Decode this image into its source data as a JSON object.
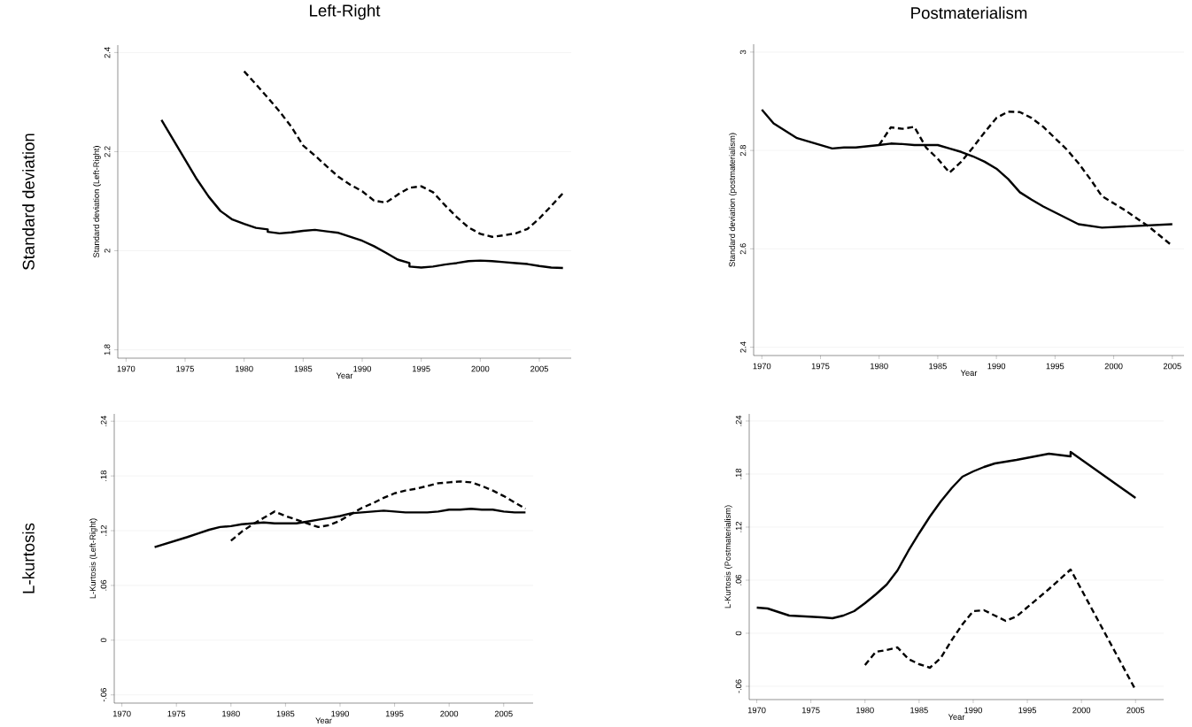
{
  "chart_data": [
    {
      "type": "line",
      "title": "Left-Right",
      "xlabel": "Year",
      "ylabel": "Standard deviation (Left-Right)",
      "annotations": [
        "Standard deviation"
      ],
      "xlim": [
        1969.3,
        2007.7
      ],
      "ylim": [
        1.783,
        2.415
      ],
      "xticks": [
        1970,
        1975,
        1980,
        1985,
        1990,
        1995,
        2000,
        2005
      ],
      "yticks": [
        1.8,
        2,
        2.2,
        2.4
      ],
      "grid": "y",
      "series": [
        {
          "color": "#000000",
          "line_style": "solid",
          "x": [
            1973,
            1976,
            1977,
            1978,
            1979,
            1980,
            1981,
            1982,
            1982,
            1983,
            1984,
            1985,
            1986,
            1987,
            1988,
            1989,
            1990,
            1991,
            1992,
            1993,
            1994,
            1994,
            1995,
            1996,
            1997,
            1998,
            1999,
            2000,
            2001,
            2002,
            2003,
            2004,
            2005,
            2006,
            2007
          ],
          "values": [
            2.264,
            2.144,
            2.109,
            2.08,
            2.063,
            2.054,
            2.046,
            2.043,
            2.038,
            2.035,
            2.037,
            2.04,
            2.042,
            2.039,
            2.036,
            2.028,
            2.02,
            2.009,
            1.996,
            1.982,
            1.975,
            1.968,
            1.966,
            1.968,
            1.972,
            1.975,
            1.979,
            1.98,
            1.979,
            1.977,
            1.975,
            1.973,
            1.969,
            1.966,
            1.965
          ]
        },
        {
          "color": "#000000",
          "line_style": "dashed",
          "x": [
            1980,
            1981,
            1982,
            1983,
            1984,
            1985,
            1986,
            1987,
            1988,
            1989,
            1990,
            1991,
            1992,
            1993,
            1994,
            1995,
            1996,
            1997,
            1998,
            1999,
            2000,
            2001,
            2002,
            2003,
            2004,
            2005,
            2006,
            2007
          ],
          "values": [
            2.362,
            2.336,
            2.309,
            2.281,
            2.25,
            2.212,
            2.192,
            2.17,
            2.149,
            2.133,
            2.12,
            2.101,
            2.097,
            2.113,
            2.127,
            2.13,
            2.118,
            2.092,
            2.068,
            2.047,
            2.034,
            2.028,
            2.031,
            2.035,
            2.044,
            2.065,
            2.09,
            2.116
          ]
        }
      ]
    },
    {
      "type": "line",
      "title": "Postmaterialism",
      "xlabel": "Year",
      "ylabel": "Standard deviation (postmaterialism)",
      "xlim": [
        1969.3,
        2006
      ],
      "ylim": [
        2.383,
        3.016
      ],
      "xticks": [
        1970,
        1975,
        1980,
        1985,
        1990,
        1995,
        2000,
        2005
      ],
      "yticks": [
        2.4,
        2.6,
        2.8,
        3
      ],
      "grid": "y",
      "series": [
        {
          "color": "#000000",
          "line_style": "solid",
          "x": [
            1970,
            1971,
            1973,
            1976,
            1977,
            1978,
            1980,
            1981,
            1982,
            1983,
            1985,
            1986,
            1987,
            1988,
            1989,
            1990,
            1991,
            1992,
            1993,
            1994,
            1997,
            1999,
            2005
          ],
          "values": [
            2.883,
            2.855,
            2.825,
            2.804,
            2.806,
            2.806,
            2.811,
            2.814,
            2.813,
            2.811,
            2.811,
            2.804,
            2.797,
            2.788,
            2.777,
            2.763,
            2.742,
            2.715,
            2.7,
            2.686,
            2.65,
            2.643,
            2.65
          ]
        },
        {
          "color": "#000000",
          "line_style": "dashed",
          "x": [
            1980,
            1981,
            1982,
            1983,
            1984,
            1985,
            1986,
            1987,
            1988,
            1989,
            1990,
            1991,
            1992,
            1993,
            1994,
            1995,
            1996,
            1997,
            1998,
            1999,
            2001,
            2003,
            2005
          ],
          "values": [
            2.811,
            2.847,
            2.844,
            2.848,
            2.806,
            2.783,
            2.755,
            2.777,
            2.806,
            2.837,
            2.866,
            2.879,
            2.878,
            2.866,
            2.848,
            2.825,
            2.802,
            2.774,
            2.742,
            2.707,
            2.678,
            2.645,
            2.606
          ]
        }
      ]
    },
    {
      "type": "line",
      "xlabel": "Year",
      "ylabel": "L-Kurtosis (Left-Right)",
      "annotations": [
        "L-kurtosis"
      ],
      "xlim": [
        1969.3,
        2007.7
      ],
      "ylim": [
        -0.069,
        0.248
      ],
      "xticks": [
        1970,
        1975,
        1980,
        1985,
        1990,
        1995,
        2000,
        2005
      ],
      "yticks": [
        {
          "value": -0.06,
          "label": "-.06"
        },
        0,
        {
          "value": 0.06,
          "label": ".06"
        },
        {
          "value": 0.12,
          "label": ".12"
        },
        {
          "value": 0.18,
          "label": ".18"
        },
        {
          "value": 0.24,
          "label": ".24"
        }
      ],
      "grid": "y",
      "series": [
        {
          "color": "#000000",
          "line_style": "solid",
          "x": [
            1973,
            1976,
            1977,
            1978,
            1979,
            1980,
            1981,
            1982,
            1983,
            1984,
            1985,
            1986,
            1987,
            1988,
            1989,
            1990,
            1991,
            1992,
            1993,
            1994,
            1995,
            1996,
            1997,
            1998,
            1999,
            2000,
            2001,
            2002,
            2003,
            2004,
            2005,
            2006,
            2007
          ],
          "values": [
            0.102,
            0.113,
            0.117,
            0.121,
            0.124,
            0.125,
            0.127,
            0.128,
            0.129,
            0.128,
            0.128,
            0.128,
            0.13,
            0.132,
            0.134,
            0.136,
            0.139,
            0.14,
            0.141,
            0.142,
            0.141,
            0.14,
            0.14,
            0.14,
            0.141,
            0.143,
            0.143,
            0.144,
            0.143,
            0.143,
            0.141,
            0.14,
            0.14
          ]
        },
        {
          "color": "#000000",
          "line_style": "dashed",
          "x": [
            1980,
            1981,
            1982,
            1983,
            1984,
            1985,
            1986,
            1987,
            1988,
            1989,
            1990,
            1991,
            1992,
            1993,
            1994,
            1995,
            1996,
            1997,
            1998,
            1999,
            2000,
            2001,
            2002,
            2003,
            2004,
            2005,
            2006,
            2007
          ],
          "values": [
            0.109,
            0.119,
            0.127,
            0.134,
            0.141,
            0.136,
            0.132,
            0.128,
            0.124,
            0.126,
            0.131,
            0.138,
            0.145,
            0.15,
            0.156,
            0.161,
            0.164,
            0.166,
            0.169,
            0.172,
            0.173,
            0.174,
            0.173,
            0.169,
            0.164,
            0.158,
            0.151,
            0.144
          ]
        }
      ]
    },
    {
      "type": "line",
      "xlabel": "Year",
      "ylabel": "L-Kurtosis (Postmaterialism)",
      "xlim": [
        1969.3,
        2007.6
      ],
      "ylim": [
        -0.075,
        0.248
      ],
      "xticks": [
        1970,
        1975,
        1980,
        1985,
        1990,
        1995,
        2000,
        2005
      ],
      "yticks": [
        {
          "value": -0.06,
          "label": "-.06"
        },
        0,
        {
          "value": 0.06,
          "label": ".06"
        },
        {
          "value": 0.12,
          "label": ".12"
        },
        {
          "value": 0.18,
          "label": ".18"
        },
        {
          "value": 0.24,
          "label": ".24"
        }
      ],
      "grid": "y",
      "series": [
        {
          "color": "#000000",
          "line_style": "solid",
          "x": [
            1970,
            1971,
            1973,
            1976,
            1977,
            1978,
            1979,
            1980,
            1981,
            1982,
            1983,
            1984,
            1985,
            1986,
            1987,
            1988,
            1989,
            1990,
            1991,
            1992,
            1993,
            1994,
            1997,
            1999,
            1999,
            2005
          ],
          "values": [
            0.029,
            0.028,
            0.02,
            0.018,
            0.017,
            0.02,
            0.025,
            0.034,
            0.044,
            0.055,
            0.071,
            0.093,
            0.113,
            0.132,
            0.149,
            0.164,
            0.177,
            0.183,
            0.188,
            0.192,
            0.194,
            0.196,
            0.203,
            0.2,
            0.205,
            0.153
          ]
        },
        {
          "color": "#000000",
          "line_style": "dashed",
          "x": [
            1980,
            1981,
            1982,
            1983,
            1984,
            1985,
            1986,
            1987,
            1988,
            1989,
            1990,
            1991,
            1992,
            1993,
            1994,
            1997,
            1999,
            2005
          ],
          "values": [
            -0.036,
            -0.021,
            -0.019,
            -0.016,
            -0.029,
            -0.035,
            -0.039,
            -0.028,
            -0.008,
            0.01,
            0.025,
            0.026,
            0.02,
            0.014,
            0.019,
            0.05,
            0.072,
            -0.064
          ]
        }
      ]
    }
  ]
}
